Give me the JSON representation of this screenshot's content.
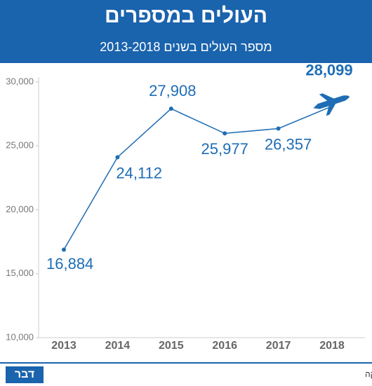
{
  "header": {
    "title": "העולים במספרים",
    "subtitle": "מספר העולים בשנים 2013-2018"
  },
  "chart_data": {
    "type": "line",
    "categories": [
      "2013",
      "2014",
      "2015",
      "2016",
      "2017",
      "2018"
    ],
    "values": [
      16884,
      24112,
      27908,
      25977,
      26357,
      28099
    ],
    "value_labels": [
      "16,884",
      "24,112",
      "27,908",
      "25,977",
      "26,357",
      "28,099"
    ],
    "color": "#1e6db5",
    "ylim": [
      10000,
      30000
    ],
    "yticks": [
      {
        "value": 10000,
        "label": "10,000"
      },
      {
        "value": 15000,
        "label": "15,000"
      },
      {
        "value": 20000,
        "label": "20,000"
      },
      {
        "value": 25000,
        "label": "25,000"
      },
      {
        "value": 30000,
        "label": "30,000"
      }
    ],
    "grid": false
  },
  "footer": {
    "source": "נתונים: הלשכה המרכזית לסטטיסטיקה",
    "logo": "דבר"
  }
}
